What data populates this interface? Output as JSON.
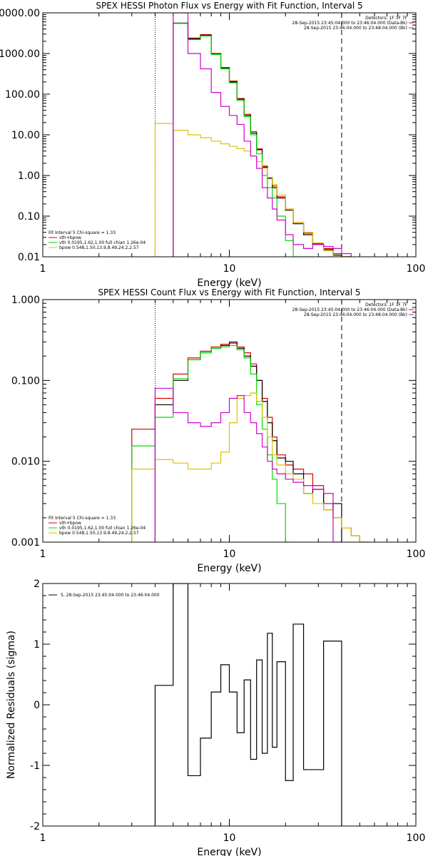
{
  "colors": {
    "total": "#e00000",
    "vth": "#00dd00",
    "bpow": "#e0c000",
    "data_cyan": "#d000d0",
    "data_black": "#000000",
    "axis": "#000000"
  },
  "chart_data": [
    {
      "type": "line",
      "title": "SPEX HESSI Photon Flux vs Energy with Fit Function, Interval 5",
      "xlabel": "Energy (keV)",
      "ylabel": "",
      "xscale": "log",
      "yscale": "log",
      "xlim": [
        1,
        100
      ],
      "ylim": [
        0.01,
        10000
      ],
      "xticks": [
        {
          "value": 1,
          "label": "1"
        },
        {
          "value": 10,
          "label": "10"
        },
        {
          "value": 100,
          "label": "100"
        }
      ],
      "yticks": [
        {
          "value": 10000,
          "label": "10000.00"
        },
        {
          "value": 1000,
          "label": "1000.00"
        },
        {
          "value": 100,
          "label": "100.00"
        },
        {
          "value": 10,
          "label": "10.00"
        },
        {
          "value": 1,
          "label": "1.00"
        },
        {
          "value": 0.1,
          "label": "0.10"
        },
        {
          "value": 0.01,
          "label": "0.01"
        }
      ],
      "info_lines": [
        "Detectors: 1F 3F 7F",
        "28-Sep-2015 23:45:04.000 to 23:46:04.000 (Data-Bk)",
        "28-Sep-2015 23:46:04.000 to 23:48:04.000 (Bk)"
      ],
      "legend": {
        "header": "Fit Interval 5   Chi-square = 1.33",
        "entries": [
          {
            "series": "total",
            "label": "vth+bpow"
          },
          {
            "series": "vth",
            "label": "vth 0.0195,1.62,1.00  full chian 1.26e-04"
          },
          {
            "series": "bpow",
            "label": "bpow 0.548,1.50,13.9,8.49,24.2,2.57"
          }
        ]
      },
      "vline_dotted": 4,
      "vline_dashed": 40,
      "edges": [
        3,
        4,
        5,
        6,
        7,
        8,
        9,
        10,
        11,
        12,
        13,
        14,
        15,
        16,
        17,
        18,
        20,
        22,
        25,
        28,
        32,
        36,
        40,
        45,
        50,
        56
      ],
      "series": [
        {
          "key": "total",
          "values": [
            null,
            null,
            5500,
            2400,
            2900,
            1000,
            450,
            210,
            78,
            32,
            12,
            4.5,
            1.7,
            0.9,
            0.55,
            0.3,
            0.15,
            0.07,
            0.038,
            0.021,
            0.016,
            0.012,
            0.01,
            null,
            null
          ]
        },
        {
          "key": "data_black",
          "values": [
            null,
            null,
            5600,
            2300,
            2800,
            980,
            440,
            200,
            75,
            30,
            11,
            4.3,
            1.6,
            0.85,
            0.5,
            0.28,
            0.14,
            0.065,
            0.035,
            0.02,
            0.015,
            0.011,
            0.01,
            null,
            null
          ]
        },
        {
          "key": "vth",
          "values": [
            null,
            null,
            5500,
            2200,
            2700,
            950,
            420,
            190,
            70,
            28,
            10,
            3.4,
            1.0,
            0.5,
            0.28,
            0.1,
            0.025,
            0.01,
            0.01,
            null,
            null,
            null,
            null,
            null,
            null
          ]
        },
        {
          "key": "bpow",
          "values": [
            null,
            19,
            13,
            10,
            8.5,
            7,
            6,
            5.2,
            4.6,
            4.0,
            3.0,
            2.2,
            1.5,
            0.9,
            0.6,
            0.33,
            0.15,
            0.07,
            0.04,
            0.022,
            0.014,
            0.01,
            0.01,
            null,
            null
          ]
        },
        {
          "key": "data_cyan",
          "values": [
            null,
            null,
            10000,
            1000,
            420,
            110,
            50,
            30,
            18,
            7,
            3,
            1.5,
            0.5,
            0.28,
            0.15,
            0.08,
            0.035,
            0.02,
            0.016,
            0.02,
            0.018,
            0.016,
            0.012,
            null,
            null
          ]
        }
      ]
    },
    {
      "type": "line",
      "title": "SPEX HESSI Count Flux vs Energy with Fit Function, Interval 5",
      "xlabel": "Energy (keV)",
      "ylabel": "",
      "xscale": "log",
      "yscale": "log",
      "xlim": [
        1,
        100
      ],
      "ylim": [
        0.001,
        1
      ],
      "xticks": [
        {
          "value": 1,
          "label": "1"
        },
        {
          "value": 10,
          "label": "10"
        },
        {
          "value": 100,
          "label": "100"
        }
      ],
      "yticks": [
        {
          "value": 1,
          "label": "1.000"
        },
        {
          "value": 0.1,
          "label": "0.100"
        },
        {
          "value": 0.01,
          "label": "0.010"
        },
        {
          "value": 0.001,
          "label": "0.001"
        }
      ],
      "info_lines": [
        "Detectors: 1F 3F 7F",
        "28-Sep-2015 23:45:04.000 to 23:46:04.000 (Data-Bk)",
        "28-Sep-2015 23:46:04.000 to 23:48:04.000 (Bk)"
      ],
      "legend": {
        "header": "Fit Interval 5   Chi-square = 1.33",
        "entries": [
          {
            "series": "total",
            "label": "vth+bpow"
          },
          {
            "series": "vth",
            "label": "vth 0.0195,1.62,1.00  full chian 1.26e-04"
          },
          {
            "series": "bpow",
            "label": "bpow 0.548,1.50,13.9,8.49,24.2,2.57"
          }
        ]
      },
      "vline_dotted": 4,
      "vline_dashed": 40,
      "edges": [
        3,
        4,
        5,
        6,
        7,
        8,
        9,
        10,
        11,
        12,
        13,
        14,
        15,
        16,
        17,
        18,
        20,
        22,
        25,
        28,
        32,
        36,
        40,
        45,
        50,
        56,
        62
      ],
      "series": [
        {
          "key": "total",
          "values": [
            0.025,
            0.06,
            0.12,
            0.19,
            0.23,
            0.26,
            0.28,
            0.3,
            0.26,
            0.22,
            0.16,
            0.1,
            0.06,
            0.035,
            0.02,
            0.012,
            0.009,
            0.008,
            0.007,
            0.005,
            0.003,
            0.002,
            0.0015,
            0.0012,
            0.001,
            null
          ]
        },
        {
          "key": "data_black",
          "values": [
            null,
            0.05,
            0.1,
            0.18,
            0.22,
            0.25,
            0.27,
            0.29,
            0.25,
            0.2,
            0.15,
            0.1,
            0.055,
            0.03,
            0.018,
            0.011,
            0.01,
            0.007,
            0.004,
            0.0045,
            0.0025,
            0.003,
            null,
            null,
            null,
            null
          ]
        },
        {
          "key": "vth",
          "values": [
            0.0155,
            0.035,
            0.105,
            0.18,
            0.22,
            0.25,
            0.26,
            0.27,
            0.24,
            0.19,
            0.12,
            0.05,
            0.025,
            0.012,
            0.006,
            0.003,
            0.001,
            null,
            null,
            null,
            null,
            null,
            null,
            null,
            null,
            null
          ]
        },
        {
          "key": "bpow",
          "values": [
            0.008,
            0.0105,
            0.0095,
            0.008,
            0.008,
            0.0095,
            0.013,
            0.03,
            0.06,
            0.065,
            0.07,
            0.055,
            0.035,
            0.02,
            0.012,
            0.009,
            0.007,
            0.006,
            0.004,
            0.003,
            0.0025,
            0.002,
            0.0015,
            0.0012,
            0.001,
            null
          ]
        },
        {
          "key": "data_cyan",
          "values": [
            null,
            0.08,
            0.04,
            0.03,
            0.027,
            0.03,
            0.04,
            0.06,
            0.065,
            0.04,
            0.03,
            0.022,
            0.015,
            0.01,
            0.008,
            0.007,
            0.006,
            0.0055,
            0.005,
            0.0045,
            0.004,
            0.001,
            null,
            null,
            null,
            null
          ]
        }
      ]
    },
    {
      "type": "line",
      "title": "",
      "xlabel": "Energy (keV)",
      "ylabel": "Normalized Residuals (sigma)",
      "xscale": "log",
      "yscale": "linear",
      "xlim": [
        1,
        100
      ],
      "ylim": [
        -2,
        2
      ],
      "xticks": [
        {
          "value": 1,
          "label": "1"
        },
        {
          "value": 10,
          "label": "10"
        },
        {
          "value": 100,
          "label": "100"
        }
      ],
      "yticks": [
        {
          "value": 2,
          "label": "2"
        },
        {
          "value": 1,
          "label": "1"
        },
        {
          "value": 0,
          "label": "0"
        },
        {
          "value": -1,
          "label": "-1"
        },
        {
          "value": -2,
          "label": "-2"
        }
      ],
      "legend": {
        "header": "",
        "entries": [
          {
            "series": "data_black",
            "label": "5, 28-Sep-2015 23:45:04.000 to 23:46:04.000"
          }
        ]
      },
      "edges": [
        4,
        5,
        6,
        7,
        8,
        9,
        10,
        11,
        12,
        13,
        14,
        15,
        16,
        17,
        18,
        20,
        22,
        25,
        28,
        32,
        36,
        40
      ],
      "series": [
        {
          "key": "data_black",
          "values": [
            0.32,
            2.0,
            -1.17,
            -0.55,
            0.21,
            0.66,
            0.21,
            -0.46,
            0.41,
            -0.9,
            0.74,
            -0.8,
            1.18,
            -0.7,
            0.71,
            -1.25,
            1.33,
            -1.07,
            -1.07,
            1.05,
            1.05
          ]
        }
      ]
    }
  ]
}
